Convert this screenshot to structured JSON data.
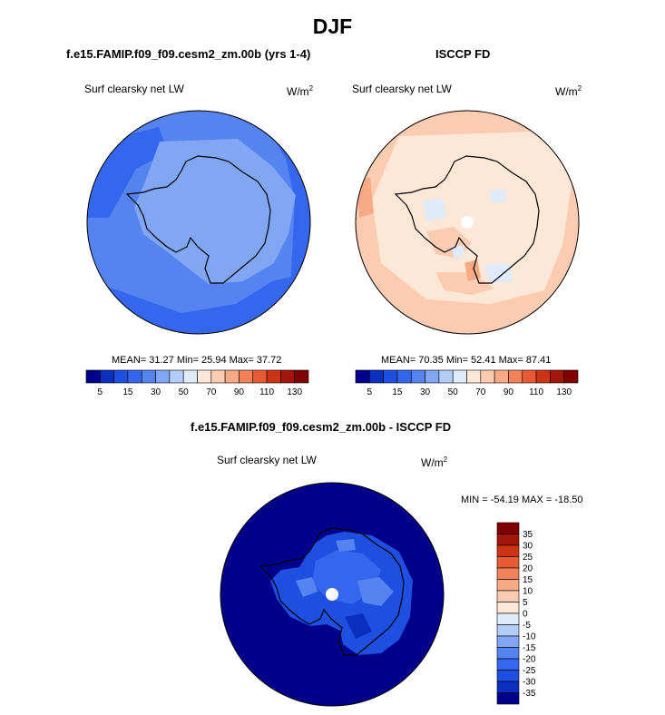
{
  "page": {
    "title": "DJF"
  },
  "colors": {
    "scale": [
      "#00008b",
      "#0a2fbf",
      "#1f4fe0",
      "#3566ee",
      "#5583f0",
      "#80a6f4",
      "#b3cdf7",
      "#dfeafb",
      "#fde7d6",
      "#fcccb2",
      "#f8aa87",
      "#f2815c",
      "#e85a34",
      "#cd3415",
      "#a4160a",
      "#800000"
    ],
    "coastline": "#000000"
  },
  "chart_data": [
    {
      "type": "heatmap",
      "projection": "south polar stereographic",
      "title": "f.e15.FAMIP.f09_f09.cesm2_zm.00b (yrs 1-4)",
      "subtitle": "Surf clearsky net LW",
      "units": "W/m",
      "units_sup": "2",
      "stats": {
        "text": "MEAN=  31.27  Min=  25.94  Max=  37.72",
        "mean": 31.27,
        "min": 25.94,
        "max": 37.72
      },
      "colorbar": {
        "orientation": "horizontal",
        "tick_labels": [
          "5",
          "15",
          "30",
          "50",
          "70",
          "90",
          "110",
          "130"
        ],
        "levels": [
          5,
          10,
          15,
          20,
          30,
          40,
          50,
          60,
          70,
          80,
          90,
          100,
          110,
          120,
          130
        ]
      }
    },
    {
      "type": "heatmap",
      "projection": "south polar stereographic",
      "title": "ISCCP FD",
      "subtitle": "Surf clearsky net LW",
      "units": "W/m",
      "units_sup": "2",
      "stats": {
        "text": "MEAN=  70.35  Min=  52.41  Max=  87.41",
        "mean": 70.35,
        "min": 52.41,
        "max": 87.41
      },
      "colorbar": {
        "orientation": "horizontal",
        "tick_labels": [
          "5",
          "15",
          "30",
          "50",
          "70",
          "90",
          "110",
          "130"
        ],
        "levels": [
          5,
          10,
          15,
          20,
          30,
          40,
          50,
          60,
          70,
          80,
          90,
          100,
          110,
          120,
          130
        ]
      }
    },
    {
      "type": "heatmap",
      "projection": "south polar stereographic",
      "title": "f.e15.FAMIP.f09_f09.cesm2_zm.00b - ISCCP FD",
      "subtitle": "Surf clearsky net LW",
      "units": "W/m",
      "units_sup": "2",
      "stats": {
        "text": "MIN = -54.19 MAX = -18.50",
        "min": -54.19,
        "max": -18.5
      },
      "colorbar": {
        "orientation": "vertical",
        "tick_labels": [
          "35",
          "30",
          "25",
          "20",
          "15",
          "10",
          "5",
          "0",
          "-5",
          "-10",
          "-15",
          "-20",
          "-25",
          "-30",
          "-35"
        ],
        "levels": [
          35,
          30,
          25,
          20,
          15,
          10,
          5,
          0,
          -5,
          -10,
          -15,
          -20,
          -25,
          -30,
          -35
        ]
      }
    }
  ]
}
